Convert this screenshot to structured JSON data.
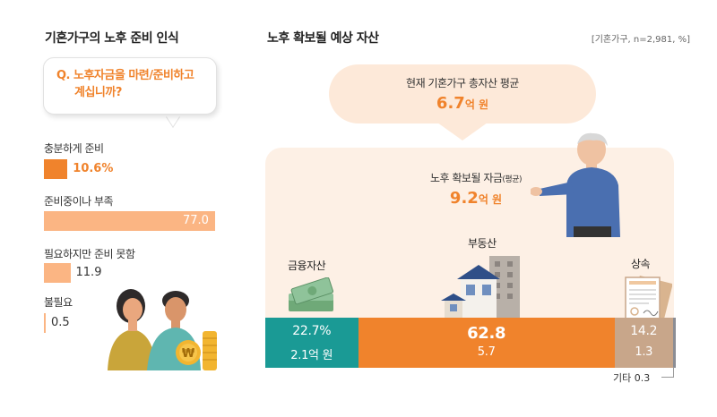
{
  "left_panel": {
    "title": "기혼가구의 노후 준비 인식",
    "question_line1": "Q. 노후자금을 마련/준비하고",
    "question_line2": "계십니까?"
  },
  "right_panel": {
    "title": "노후 확보될 예상 자산",
    "source_note": "[기혼가구, n=2,981, %]",
    "total_label": "현재 기혼가구 총자산 평균",
    "total_value": "6.7",
    "total_unit": "억 원",
    "retire_label_main": "노후 확보될 자금",
    "retire_label_sub": "(평균)",
    "retire_value": "9.2",
    "retire_unit": "억 원",
    "other_label": "기타 0.3"
  },
  "colors": {
    "orange_dark": "#f0832c",
    "orange_light": "#fbb583",
    "teal": "#1a9a95",
    "tan": "#c8a68a",
    "grey": "#8b8d94",
    "panel_bg": "#fdf0e5"
  },
  "chart_data": [
    {
      "type": "bar",
      "orientation": "horizontal",
      "categories": [
        "충분하게 준비",
        "준비중이나 부족",
        "필요하지만 준비 못함",
        "불필요"
      ],
      "values": [
        10.6,
        77.0,
        11.9,
        0.5
      ],
      "labels": [
        "10.6%",
        "77.0",
        "11.9",
        "0.5"
      ],
      "xlim": [
        0,
        77.0
      ],
      "grid": false,
      "legend": "none"
    },
    {
      "type": "bar",
      "orientation": "horizontal",
      "stacked": true,
      "categories": [
        "금융자산",
        "부동산",
        "상속",
        "기타"
      ],
      "values": [
        22.7,
        62.8,
        14.2,
        0.3
      ],
      "amounts": [
        2.1,
        5.7,
        1.3,
        null
      ],
      "labels": [
        "22.7%",
        "62.8",
        "14.2",
        ""
      ],
      "amount_labels": [
        "2.1억 원",
        "5.7",
        "1.3",
        ""
      ],
      "unit": "%",
      "grid": false,
      "legend": "none"
    }
  ]
}
